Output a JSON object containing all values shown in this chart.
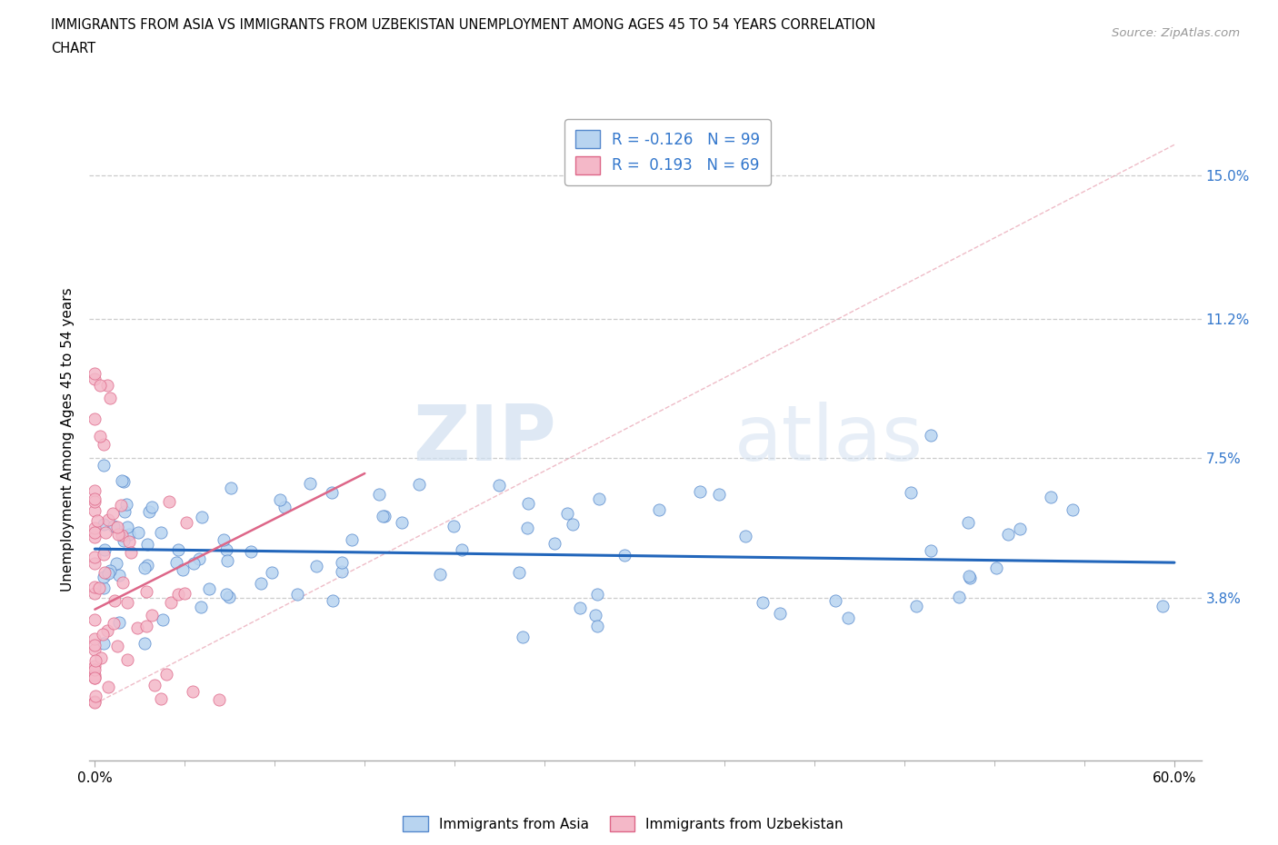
{
  "title_line1": "IMMIGRANTS FROM ASIA VS IMMIGRANTS FROM UZBEKISTAN UNEMPLOYMENT AMONG AGES 45 TO 54 YEARS CORRELATION",
  "title_line2": "CHART",
  "source": "Source: ZipAtlas.com",
  "ylabel_label": "Unemployment Among Ages 45 to 54 years",
  "xlim": [
    -0.003,
    0.615
  ],
  "ylim": [
    -0.005,
    0.165
  ],
  "y_ticks": [
    0.038,
    0.075,
    0.112,
    0.15
  ],
  "y_tick_labels": [
    "3.8%",
    "7.5%",
    "11.2%",
    "15.0%"
  ],
  "x_ticks": [
    0.0,
    0.6
  ],
  "x_tick_labels": [
    "0.0%",
    "60.0%"
  ],
  "x_minor_ticks": [
    0.05,
    0.1,
    0.15,
    0.2,
    0.25,
    0.3,
    0.35,
    0.4,
    0.45,
    0.5,
    0.55
  ],
  "R_asia": -0.126,
  "N_asia": 99,
  "R_uzbek": 0.193,
  "N_uzbek": 69,
  "watermark_zip": "ZIP",
  "watermark_atlas": "atlas",
  "legend_labels": [
    "Immigrants from Asia",
    "Immigrants from Uzbekistan"
  ],
  "asia_face_color": "#b8d4f0",
  "asia_edge_color": "#5588cc",
  "uzbek_face_color": "#f4b8c8",
  "uzbek_edge_color": "#dd6688",
  "asia_line_color": "#2266bb",
  "uzbek_trend_color": "#dd6688",
  "ref_line_color": "#cccccc",
  "grid_color": "#cccccc",
  "right_tick_color": "#3377cc",
  "asia_trend_slope": -0.006,
  "asia_trend_intercept": 0.051,
  "uzbek_trend_slope": 0.24,
  "uzbek_trend_intercept": 0.035
}
